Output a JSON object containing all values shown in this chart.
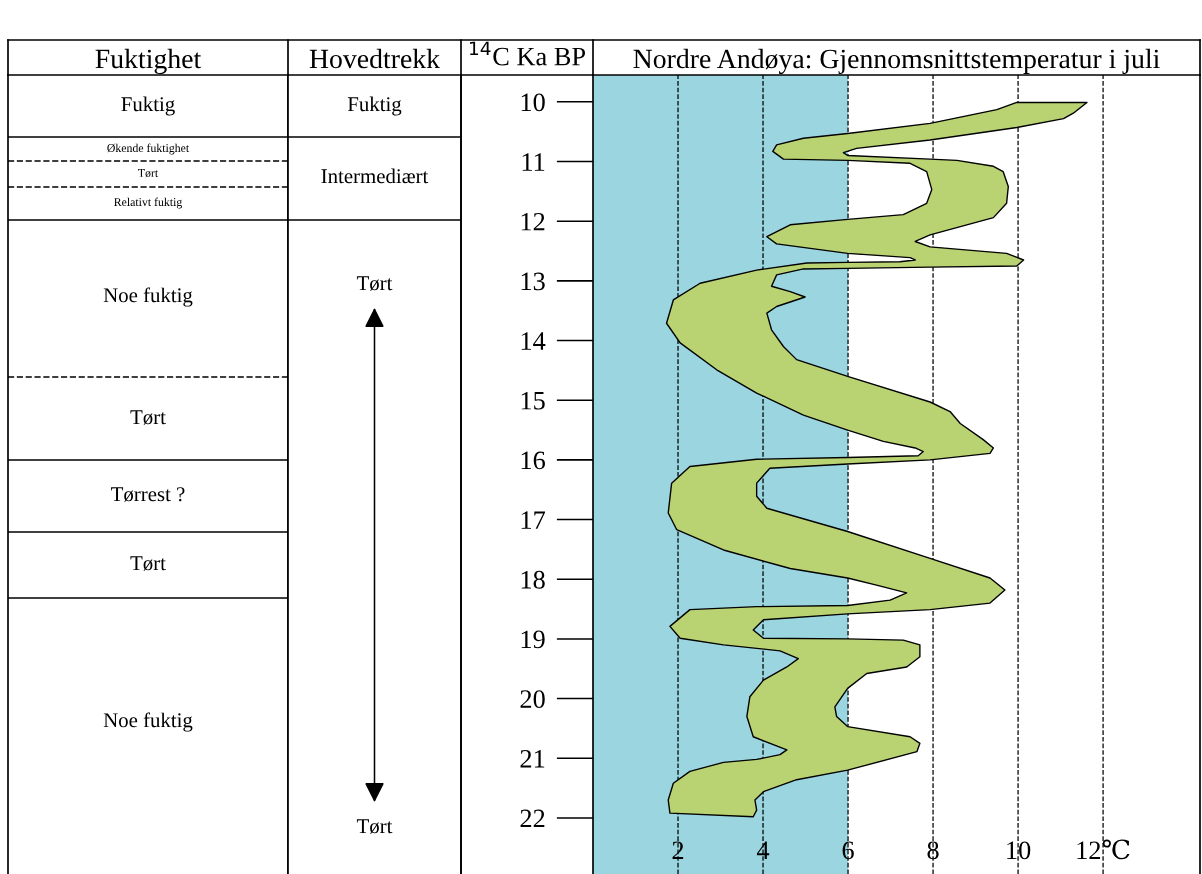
{
  "chart_data": [
    {
      "type": "other",
      "title": "Fuktighet",
      "annotations": [
        "Fuktig",
        "Økende fuktighet",
        "Tørt",
        "Relativt fuktig",
        "Noe fuktig",
        "Tørt",
        "Tørrest ?",
        "Tørt",
        "Noe fuktig"
      ]
    },
    {
      "type": "other",
      "title": "Hovedtrekk",
      "annotations": [
        "Fuktig",
        "Intermediært",
        "Tørt",
        "Tørt"
      ]
    },
    {
      "type": "area",
      "title": "Nordre Andøya: Gjennomsnittstemperatur i juli",
      "ylabel": "$^{14}$C Ka BP",
      "xlim": [
        0,
        14.28
      ],
      "ylim": [
        22.94,
        9.55
      ],
      "xticks": [
        2,
        4,
        6,
        8,
        10,
        {
          "value": 12,
          "label": "12℃"
        }
      ],
      "yticks": [
        10,
        11,
        12,
        13,
        14,
        15,
        16,
        17,
        18,
        19,
        20,
        21,
        22
      ],
      "grid": "x",
      "bands": [
        {
          "axis": "x",
          "from": 0,
          "to": 6,
          "color": "#9ad5e0"
        }
      ],
      "series": [
        {
          "color": "#bad372",
          "x": [
            11.62,
            9.97,
            9.5,
            7.93,
            5.99,
            4.95,
            4.32,
            4.23,
            4.48,
            5.99,
            7.46,
            7.85,
            7.97,
            7.85,
            7.3,
            5.99,
            4.64,
            4.09,
            4.32,
            5.99,
            7.46,
            7.58,
            7.22,
            5.99,
            5.03,
            3.85,
            2.52,
            1.89,
            1.73,
            2.05,
            2.91,
            3.85,
            4.95,
            5.99,
            6.83,
            7.58,
            7.77,
            7.65,
            5.99,
            3.85,
            2.28,
            1.85,
            1.77,
            1.97,
            3.07,
            4.64,
            5.99,
            6.67,
            7.38,
            6.99,
            5.99,
            3.85,
            2.28,
            1.81,
            2.05,
            3.07,
            4.4,
            4.83,
            4.56,
            4.01,
            3.69,
            3.62,
            3.77,
            4.56,
            4.4,
            3.85,
            3.07,
            2.28,
            1.89,
            1.77,
            1.81,
            3.77,
            3.85,
            3.81,
            4.01,
            4.79,
            5.99,
            7.62,
            7.69,
            7.46,
            5.99,
            5.73,
            5.69,
            5.99,
            6.44,
            7.38,
            7.69,
            7.69,
            7.3,
            5.99,
            4.01,
            3.77,
            4.01,
            5.99,
            7.93,
            9.34,
            9.69,
            9.34,
            7.93,
            5.99,
            4.09,
            3.85,
            3.85,
            4.16,
            5.99,
            7.93,
            9.34,
            9.42,
            9.18,
            8.64,
            8.4,
            7.93,
            5.99,
            4.79,
            4.48,
            4.2,
            4.09,
            4.32,
            4.99,
            4.64,
            4.2,
            4.32,
            4.95,
            5.99,
            7.93,
            9.97,
            10.13,
            9.73,
            7.93,
            7.58,
            7.93,
            9.42,
            9.73,
            9.77,
            9.65,
            9.42,
            8.56,
            7.93,
            5.99,
            5.89,
            6.2,
            7.93,
            9.97,
            11.07,
            11.3
          ],
          "values": [
            10.01,
            10.01,
            10.13,
            10.36,
            10.53,
            10.61,
            10.72,
            10.83,
            10.96,
            10.98,
            11.03,
            11.17,
            11.47,
            11.7,
            11.89,
            11.97,
            12.06,
            12.26,
            12.38,
            12.54,
            12.61,
            12.65,
            12.68,
            12.69,
            12.7,
            12.82,
            13.04,
            13.32,
            13.71,
            14.04,
            14.49,
            14.88,
            15.25,
            15.5,
            15.69,
            15.8,
            15.86,
            15.93,
            15.96,
            15.99,
            16.11,
            16.39,
            16.89,
            17.17,
            17.51,
            17.82,
            17.98,
            18.1,
            18.23,
            18.35,
            18.44,
            18.46,
            18.51,
            18.79,
            18.99,
            19.1,
            19.2,
            19.33,
            19.47,
            19.69,
            19.97,
            20.3,
            20.64,
            20.86,
            20.94,
            21.02,
            21.07,
            21.22,
            21.42,
            21.7,
            21.92,
            21.98,
            21.87,
            21.7,
            21.56,
            21.36,
            21.2,
            20.89,
            20.75,
            20.64,
            20.47,
            20.3,
            20.14,
            19.83,
            19.58,
            19.47,
            19.3,
            19.1,
            19.02,
            19.0,
            18.99,
            18.85,
            18.68,
            18.58,
            18.51,
            18.4,
            18.18,
            17.98,
            17.65,
            17.2,
            16.81,
            16.61,
            16.39,
            16.14,
            16.07,
            16.0,
            15.89,
            15.8,
            15.66,
            15.39,
            15.19,
            15.03,
            14.6,
            14.32,
            14.1,
            13.82,
            13.54,
            13.43,
            13.27,
            13.18,
            13.09,
            12.9,
            12.8,
            12.79,
            12.77,
            12.75,
            12.65,
            12.54,
            12.43,
            12.34,
            12.23,
            11.94,
            11.7,
            11.42,
            11.17,
            11.08,
            10.98,
            10.96,
            10.9,
            10.85,
            10.78,
            10.64,
            10.43,
            10.28,
            10.19
          ]
        }
      ]
    }
  ]
}
